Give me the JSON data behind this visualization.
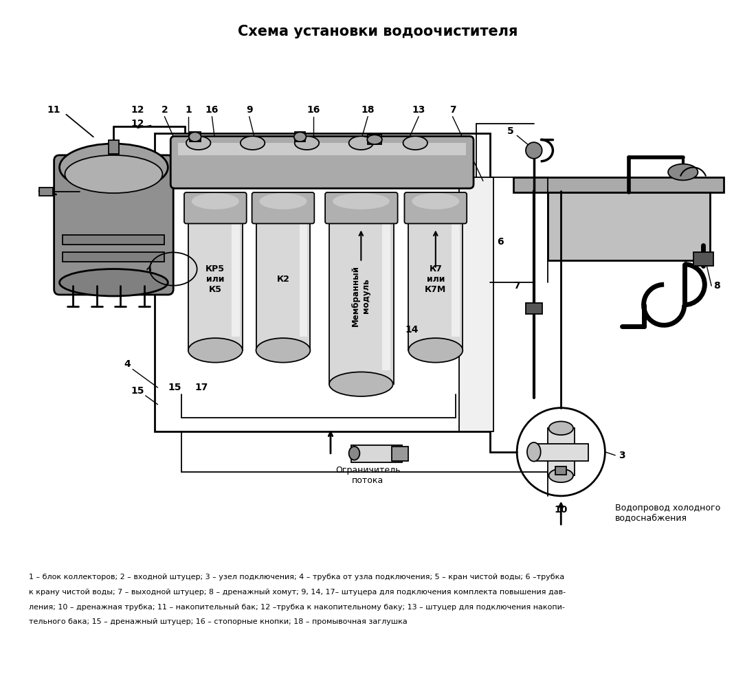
{
  "title": "Схема установки водоочистителя",
  "title_fontsize": 15,
  "title_fontweight": "bold",
  "bg": "#ffffff",
  "line_color": "#000000",
  "gray1": "#909090",
  "gray2": "#aaaaaa",
  "gray3": "#c0c0c0",
  "gray4": "#d8d8d8",
  "gray5": "#b8b8b8",
  "legend_line1": "1 – блок коллекторов; 2 – входной штуцер; 3 – узел подключения; 4 – трубка от узла подключения; 5 – кран чистой воды; 6 –трубка",
  "legend_line2": "к крану чистой воды; 7 – выходной штуцер; 8 – дренажный хомут; 9, 14, 17– штуцера для подключения комплекта повышения дав-",
  "legend_line3": "ления; 10 – дренажная трубка; 11 – накопительный бак; 12 –трубка к накопительному баку; 13 – штуцер для подключения накопи-",
  "legend_line4": "тельного бака; 15 – дренажный штуцер; 16 – стопорные кнопки; 18 – промывочная заглушка"
}
